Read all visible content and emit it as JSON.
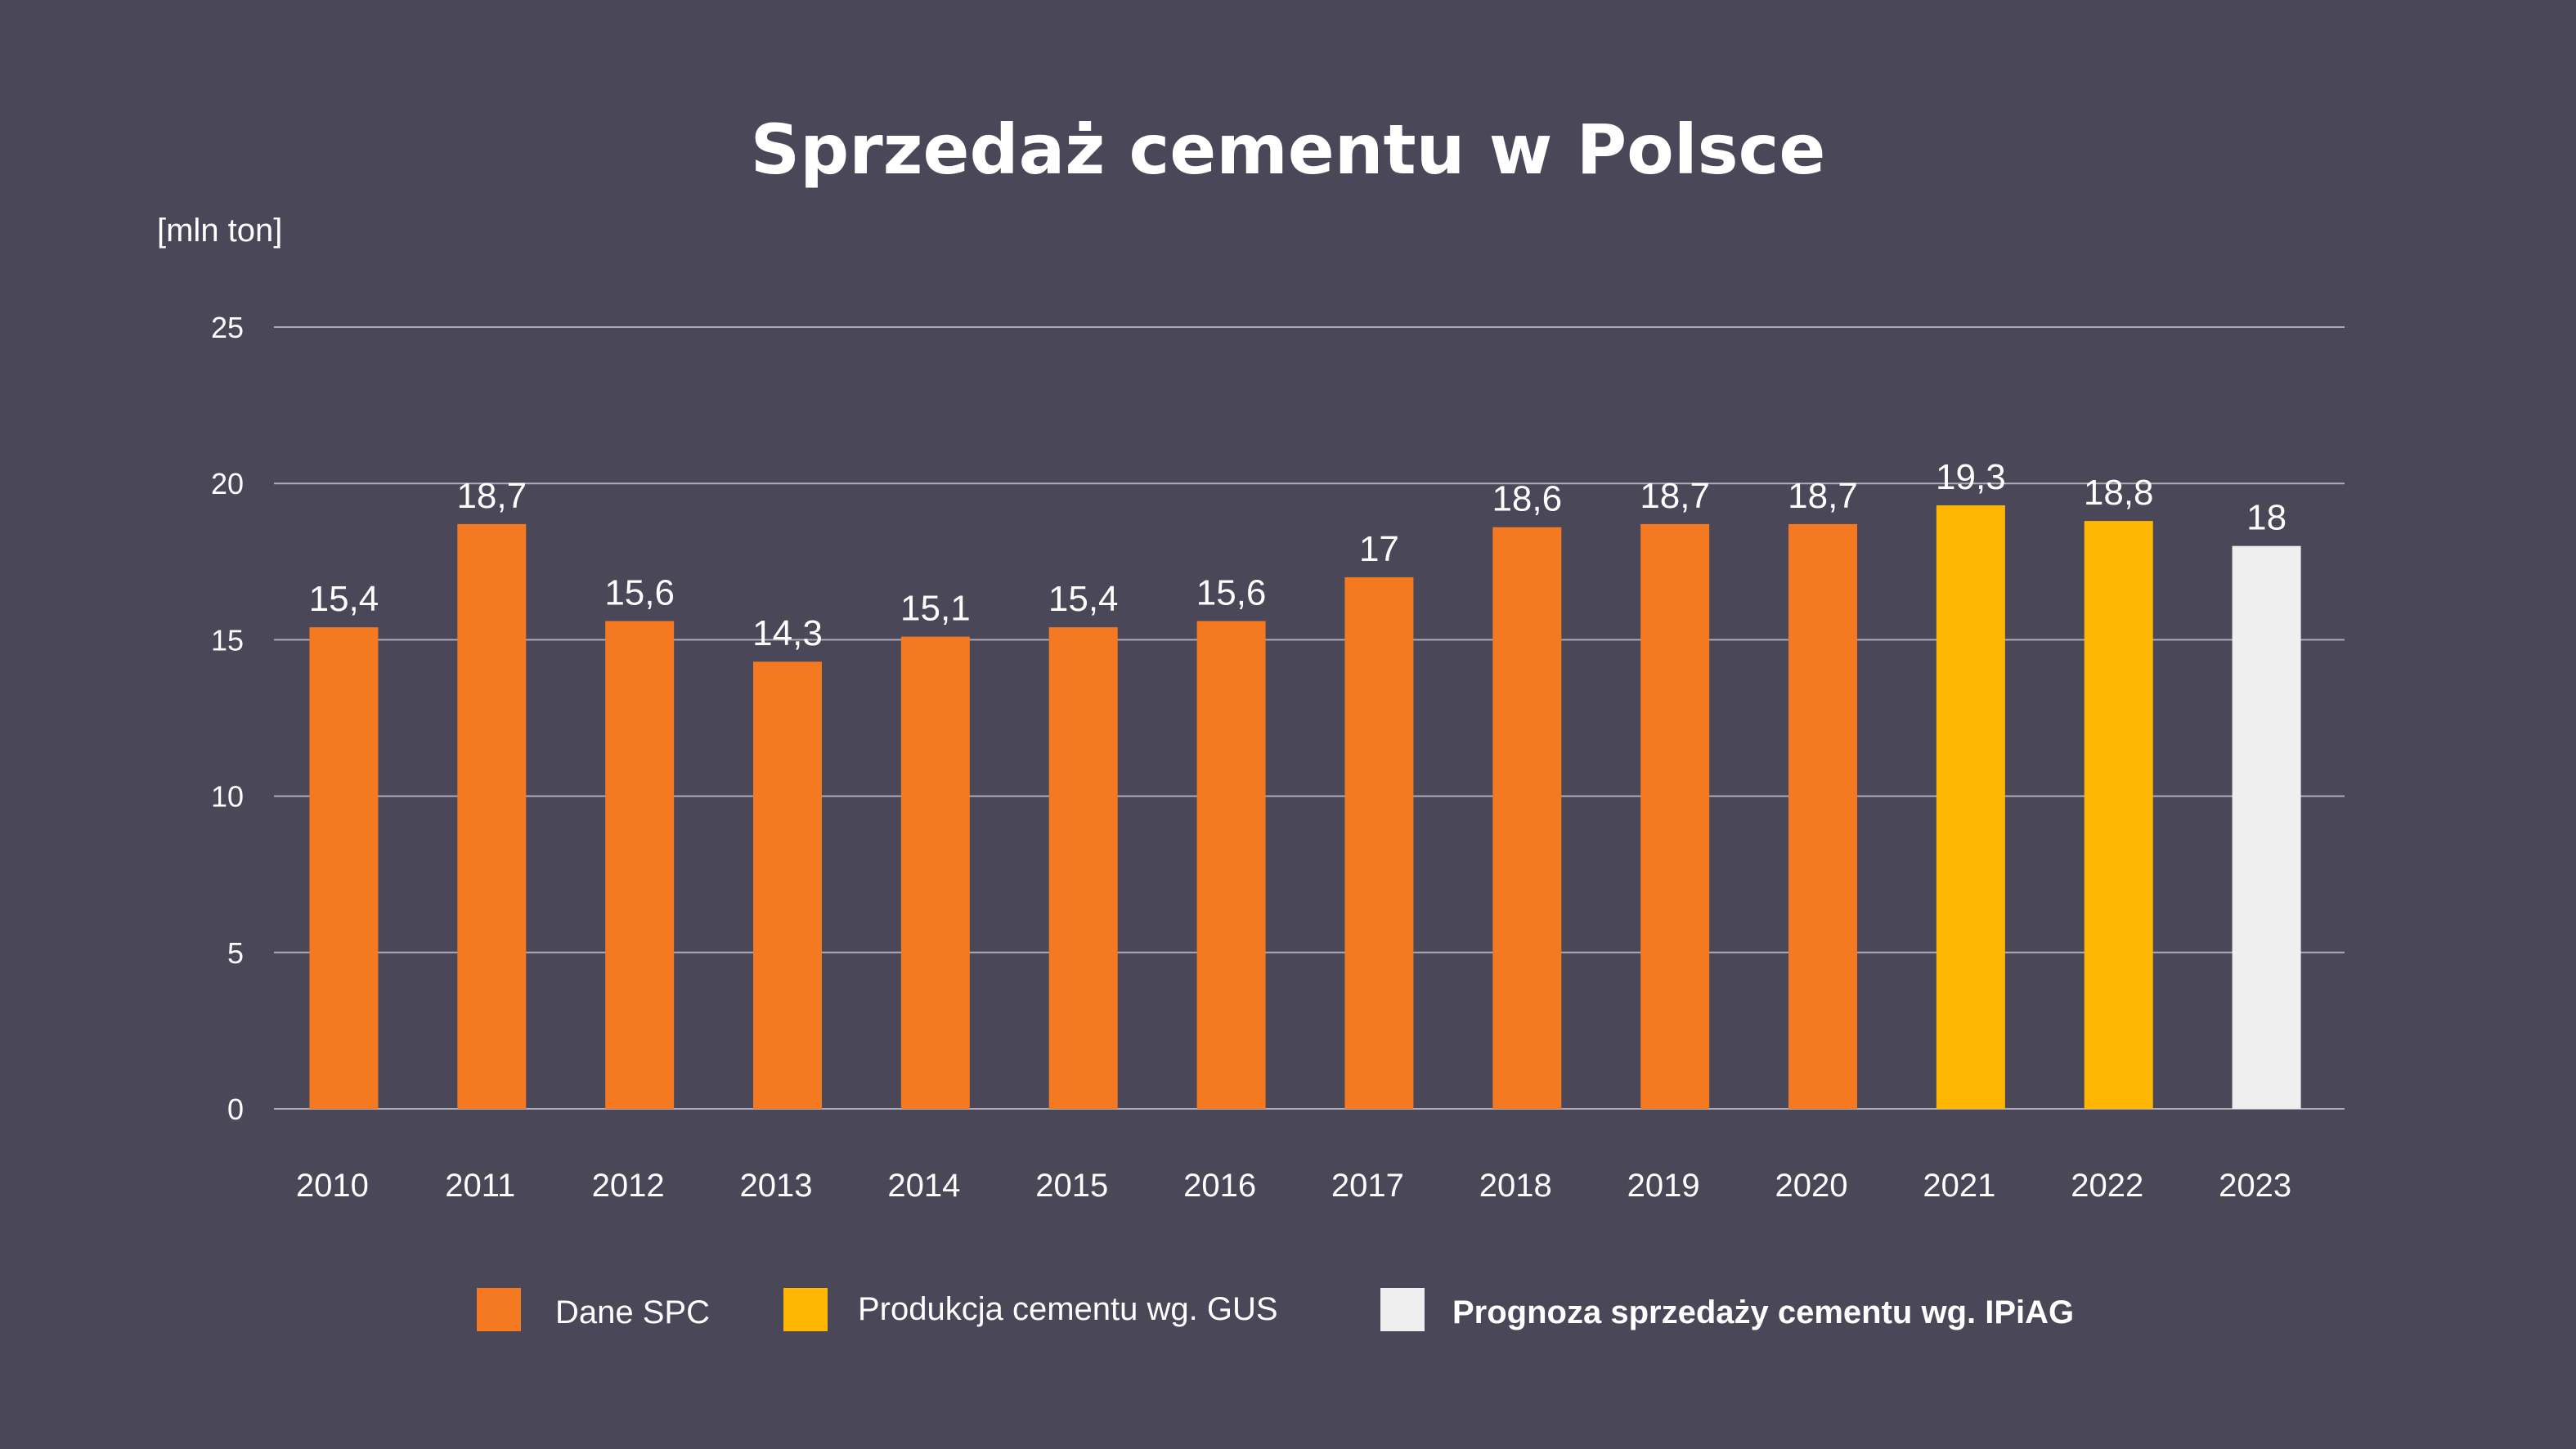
{
  "chart_data": {
    "type": "bar",
    "title": "Sprzedaż cementu w Polsce",
    "ylabel": "[mln ton]",
    "xlabel": "",
    "ylim": [
      0,
      25
    ],
    "yticks": [
      "0",
      "5",
      "10",
      "15",
      "20",
      "25"
    ],
    "ytick_values": [
      0,
      5,
      10,
      15,
      20,
      25
    ],
    "grid": true,
    "legend_position": "bottom",
    "categories": [
      "2010",
      "2011",
      "2012",
      "2013",
      "2014",
      "2015",
      "2016",
      "2017",
      "2018",
      "2019",
      "2020",
      "2021",
      "2022",
      "2023"
    ],
    "values": [
      15.4,
      18.7,
      15.6,
      14.3,
      15.1,
      15.4,
      15.6,
      17,
      18.6,
      18.7,
      18.7,
      19.3,
      18.8,
      18
    ],
    "data_labels": [
      "15,4",
      "18,7",
      "15,6",
      "14,3",
      "15,1",
      "15,4",
      "15,6",
      "17",
      "18,6",
      "18,7",
      "18,7",
      "19,3",
      "18,8",
      "18"
    ],
    "series_index": [
      0,
      0,
      0,
      0,
      0,
      0,
      0,
      0,
      0,
      0,
      0,
      1,
      1,
      2
    ],
    "legend": [
      {
        "name": "Dane SPC",
        "color": "#f47920"
      },
      {
        "name": "Produkcja cementu wg. GUS",
        "color": "#ffb703"
      },
      {
        "name": "Prognoza sprzedaży cementu wg. IPiAG",
        "color": "#efefef",
        "bold": true
      }
    ],
    "background": "#4a4759"
  }
}
